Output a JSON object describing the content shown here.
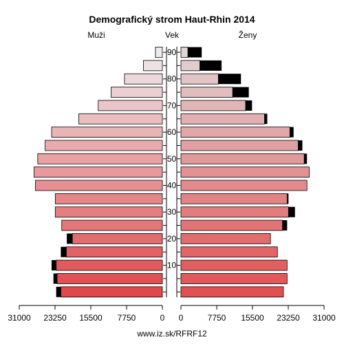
{
  "chart_data": {
    "type": "bar",
    "title": "Demografický strom Haut-Rhin 2014",
    "left_label": "Muži",
    "center_label": "Vek",
    "right_label": "Ženy",
    "footer": "www.iz.sk/RFRF12",
    "x_ticks": [
      "31000",
      "23250",
      "15500",
      "7750",
      "0",
      "0",
      "7750",
      "15500",
      "23250",
      "31000"
    ],
    "age_ticks": [
      "90",
      "80",
      "70",
      "60",
      "50",
      "40",
      "30",
      "20",
      "10"
    ],
    "xlim": [
      0,
      31000
    ],
    "age_groups": [
      "0-4",
      "5-9",
      "10-14",
      "15-19",
      "20-24",
      "25-29",
      "30-34",
      "35-39",
      "40-44",
      "45-49",
      "50-54",
      "55-59",
      "60-64",
      "65-69",
      "70-74",
      "75-79",
      "80-84",
      "85-89",
      "90+"
    ],
    "series": [
      {
        "name": "Muži",
        "values": [
          22000,
          22800,
          23000,
          20800,
          19500,
          21800,
          23200,
          23200,
          27500,
          27800,
          27000,
          25400,
          24000,
          18100,
          13900,
          11100,
          8200,
          4100,
          1500
        ],
        "extra": [
          1000,
          800,
          1000,
          1200,
          1200,
          0,
          0,
          0,
          0,
          0,
          0,
          0,
          0,
          0,
          0,
          0,
          0,
          0,
          0
        ]
      },
      {
        "name": "Ženy",
        "values": [
          22200,
          23000,
          23000,
          20900,
          19400,
          22000,
          23300,
          23000,
          27300,
          27800,
          26700,
          25400,
          23600,
          18100,
          14000,
          11200,
          8100,
          4100,
          1500
        ],
        "extra": [
          0,
          0,
          0,
          0,
          0,
          1000,
          1400,
          300,
          0,
          0,
          600,
          900,
          800,
          600,
          1400,
          3500,
          4900,
          4700,
          3000
        ]
      }
    ]
  }
}
